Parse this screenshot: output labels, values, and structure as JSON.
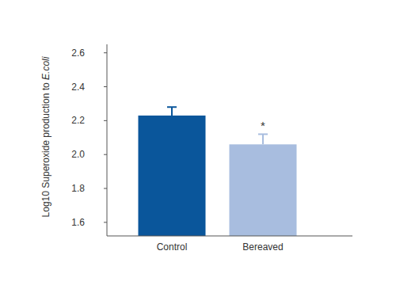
{
  "chart_data": {
    "type": "bar",
    "ylabel": "Log10 Superoxide production to E.coli",
    "categories": [
      "Control",
      "Bereaved"
    ],
    "values": [
      2.23,
      2.06
    ],
    "errors": [
      0.05,
      0.06
    ],
    "colors": [
      "#0a569b",
      "#a8bddf"
    ],
    "ylim": [
      1.52,
      2.65
    ],
    "yticks": [
      1.6,
      1.8,
      2.0,
      2.2,
      2.4,
      2.6
    ],
    "grid": false,
    "annotations": [
      {
        "text": "*",
        "category": 1
      }
    ]
  }
}
